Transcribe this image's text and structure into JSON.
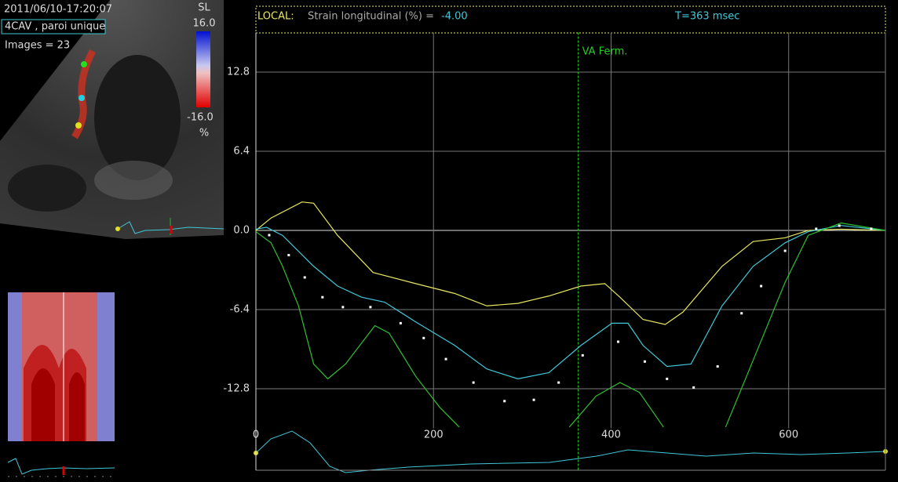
{
  "header": {
    "timestamp": "2011/06/10-17:20:07",
    "view": "4CAV , paroi unique",
    "images": "Images = 23",
    "colorbar": {
      "title": "SL",
      "max": "16.0",
      "min": "-16.0",
      "unit": "%"
    }
  },
  "chart_data": {
    "type": "line",
    "label": "LOCAL:",
    "title": "Strain longitudinal (%) =",
    "current_value": "-4.00",
    "time": "T=363 msec",
    "xlim": [
      0,
      709
    ],
    "ylim": [
      -16,
      16
    ],
    "xticks": [
      0,
      200,
      400,
      600
    ],
    "yticks": [
      12.8,
      6.4,
      {
        "value": 0,
        "label": "0.0"
      },
      -6.4,
      -12.8
    ],
    "grid": true,
    "marker": {
      "x": 363,
      "label": "VA Ferm.",
      "color": "#22cc22"
    },
    "series": [
      {
        "color": "#e8e860",
        "style": "line",
        "x": [
          0,
          17,
          52,
          65,
          92,
          132,
          180,
          224,
          260,
          295,
          330,
          366,
          393,
          410,
          436,
          461,
          481,
          525,
          560,
          596,
          622,
          659,
          709
        ],
        "values": [
          0,
          1.0,
          2.3,
          2.2,
          -0.4,
          -3.4,
          -4.3,
          -5.1,
          -6.1,
          -5.9,
          -5.3,
          -4.5,
          -4.3,
          -5.4,
          -7.2,
          -7.6,
          -6.6,
          -2.9,
          -0.9,
          -0.6,
          0,
          0.1,
          0
        ]
      },
      {
        "color": "#40c8d8",
        "style": "line",
        "x": [
          0,
          12,
          30,
          65,
          92,
          119,
          145,
          180,
          224,
          260,
          295,
          330,
          366,
          401,
          419,
          436,
          463,
          490,
          525,
          560,
          596,
          622,
          659,
          709
        ],
        "values": [
          0.1,
          0.25,
          -0.4,
          -2.9,
          -4.5,
          -5.4,
          -5.8,
          -7.4,
          -9.3,
          -11.2,
          -12.0,
          -11.5,
          -9.3,
          -7.5,
          -7.5,
          -9.3,
          -11.0,
          -10.8,
          -6.1,
          -2.9,
          -1.0,
          -0.1,
          0.4,
          0
        ]
      },
      {
        "color": "#30c030",
        "style": "line",
        "x": [
          0,
          17,
          30,
          48,
          65,
          81,
          101,
          134,
          150,
          180,
          207,
          229,
          300,
          353,
          383,
          410,
          432,
          459,
          495,
          529,
          560,
          596,
          622,
          659,
          709
        ],
        "values": [
          -0.1,
          -1.0,
          -2.9,
          -6.1,
          -10.8,
          -12.0,
          -10.8,
          -7.7,
          -8.3,
          -11.8,
          -14.3,
          -15.9,
          null,
          -15.9,
          -13.4,
          -12.3,
          -13.1,
          -15.9,
          null,
          -15.9,
          -10.5,
          -4.2,
          -0.4,
          0.6,
          0
        ]
      },
      {
        "color": "#ffffff",
        "style": "dots",
        "x": [
          15,
          37,
          55,
          75,
          98,
          129,
          163,
          189,
          214,
          245,
          280,
          313,
          341,
          368,
          408,
          438,
          463,
          493,
          520,
          547,
          569,
          596,
          631,
          657,
          693
        ],
        "values": [
          -0.38,
          -2.0,
          -3.8,
          -5.4,
          -6.2,
          -6.2,
          -7.5,
          -8.7,
          -10.4,
          -12.3,
          -13.8,
          -13.7,
          -12.3,
          -10.1,
          -9.0,
          -10.6,
          -12.0,
          -12.7,
          -11.0,
          -6.7,
          -4.5,
          -1.65,
          0.13,
          0.38,
          0.13
        ]
      }
    ]
  }
}
